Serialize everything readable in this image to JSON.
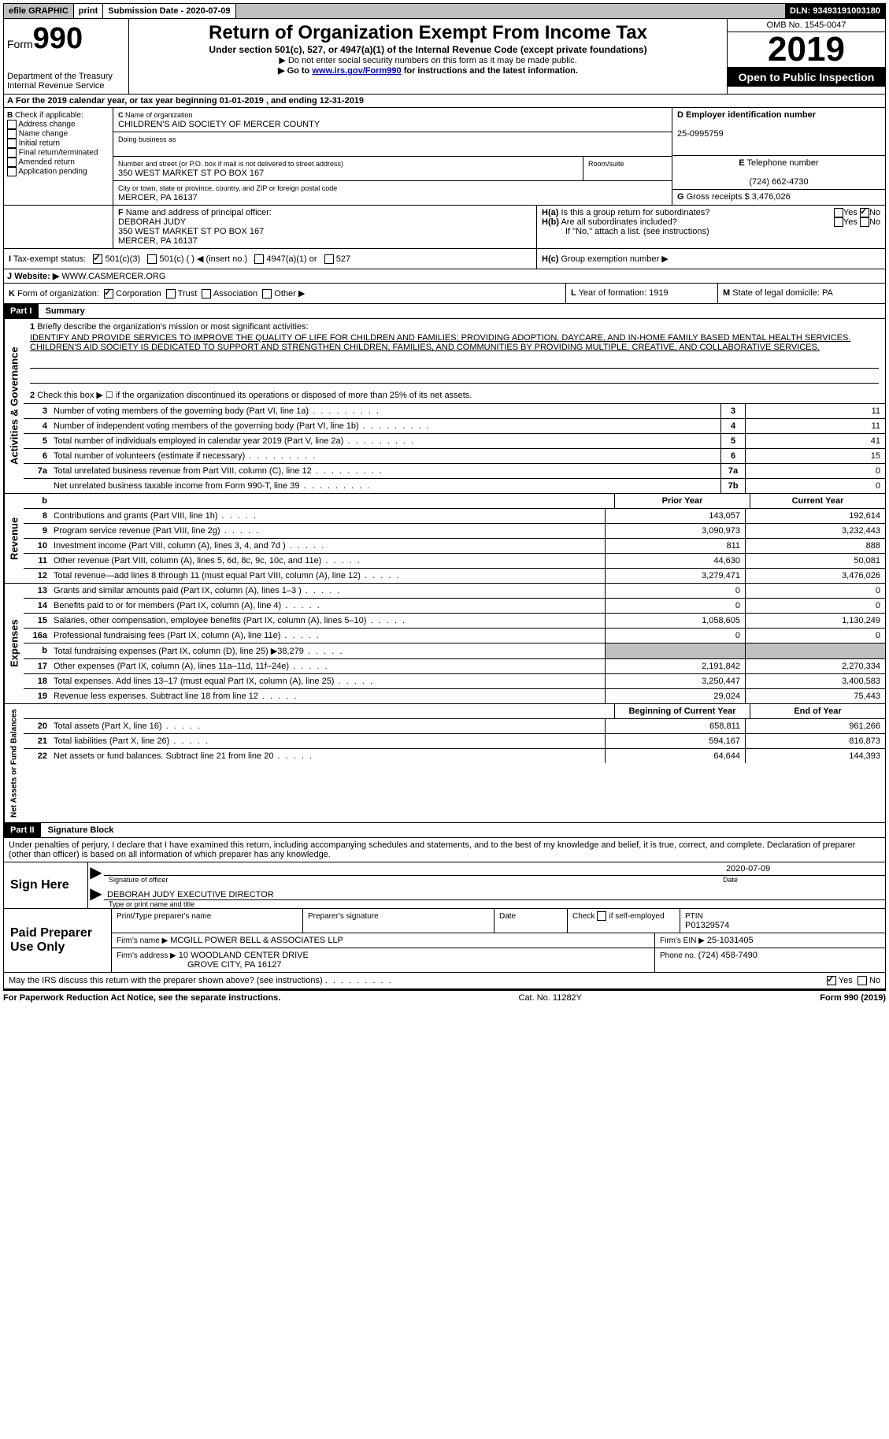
{
  "top": {
    "efile": "efile GRAPHIC",
    "print": "print",
    "submission": "Submission Date - 2020-07-09",
    "dln": "DLN: 93493191003180"
  },
  "header": {
    "form": "Form",
    "num": "990",
    "dept": "Department of the Treasury\nInternal Revenue Service",
    "title": "Return of Organization Exempt From Income Tax",
    "subtitle": "Under section 501(c), 527, or 4947(a)(1) of the Internal Revenue Code (except private foundations)",
    "note1": "Do not enter social security numbers on this form as it may be made public.",
    "note2_pre": "Go to ",
    "note2_link": "www.irs.gov/Form990",
    "note2_post": " for instructions and the latest information.",
    "omb": "OMB No. 1545-0047",
    "year": "2019",
    "inspection": "Open to Public Inspection"
  },
  "rowA": "For the 2019 calendar year, or tax year beginning 01-01-2019  , and ending 12-31-2019",
  "b": {
    "label": "Check if applicable:",
    "opts": [
      "Address change",
      "Name change",
      "Initial return",
      "Final return/terminated",
      "Amended return",
      "Application pending"
    ]
  },
  "c": {
    "name_label": "Name of organization",
    "name": "CHILDREN'S AID SOCIETY OF MERCER COUNTY",
    "dba_label": "Doing business as",
    "addr_label": "Number and street (or P.O. box if mail is not delivered to street address)",
    "room_label": "Room/suite",
    "addr": "350 WEST MARKET ST PO BOX 167",
    "city_label": "City or town, state or province, country, and ZIP or foreign postal code",
    "city": "MERCER, PA  16137"
  },
  "d": {
    "label": "Employer identification number",
    "val": "25-0995759"
  },
  "e": {
    "label": "Telephone number",
    "val": "(724) 662-4730"
  },
  "g": {
    "label": "Gross receipts $",
    "val": "3,476,026"
  },
  "f": {
    "label": "Name and address of principal officer:",
    "name": "DEBORAH JUDY",
    "addr": "350 WEST MARKET ST PO BOX 167",
    "city": "MERCER, PA  16137"
  },
  "h": {
    "a": "Is this a group return for subordinates?",
    "b": "Are all subordinates included?",
    "b_note": "If \"No,\" attach a list. (see instructions)",
    "c": "Group exemption number ▶",
    "yes": "Yes",
    "no": "No"
  },
  "i": {
    "label": "Tax-exempt status:",
    "opts": [
      "501(c)(3)",
      "501(c) (  ) ◀ (insert no.)",
      "4947(a)(1) or",
      "527"
    ]
  },
  "j": {
    "label": "Website: ▶",
    "val": "WWW.CASMERCER.ORG"
  },
  "k": {
    "label": "Form of organization:",
    "opts": [
      "Corporation",
      "Trust",
      "Association",
      "Other ▶"
    ]
  },
  "l": {
    "label": "Year of formation:",
    "val": "1919"
  },
  "m": {
    "label": "State of legal domicile:",
    "val": "PA"
  },
  "part1": {
    "header": "Part I",
    "title": "Summary",
    "q1": "Briefly describe the organization's mission or most significant activities:",
    "mission": "IDENTIFY AND PROVIDE SERVICES TO IMPROVE THE QUALITY OF LIFE FOR CHILDREN AND FAMILIES; PROVIDING ADOPTION, DAYCARE, AND IN-HOME FAMILY BASED MENTAL HEALTH SERVICES. CHILDREN'S AID SOCIETY IS DEDICATED TO SUPPORT AND STRENGTHEN CHILDREN, FAMILIES, AND COMMUNITIES BY PROVIDING MULTIPLE, CREATIVE, AND COLLABORATIVE SERVICES.",
    "q2": "Check this box ▶ ☐  if the organization discontinued its operations or disposed of more than 25% of its net assets."
  },
  "govLines": [
    {
      "n": "3",
      "d": "Number of voting members of the governing body (Part VI, line 1a)",
      "b": "3",
      "v": "11"
    },
    {
      "n": "4",
      "d": "Number of independent voting members of the governing body (Part VI, line 1b)",
      "b": "4",
      "v": "11"
    },
    {
      "n": "5",
      "d": "Total number of individuals employed in calendar year 2019 (Part V, line 2a)",
      "b": "5",
      "v": "41"
    },
    {
      "n": "6",
      "d": "Total number of volunteers (estimate if necessary)",
      "b": "6",
      "v": "15"
    },
    {
      "n": "7a",
      "d": "Total unrelated business revenue from Part VIII, column (C), line 12",
      "b": "7a",
      "v": "0"
    },
    {
      "n": "",
      "d": "Net unrelated business taxable income from Form 990-T, line 39",
      "b": "7b",
      "v": "0"
    }
  ],
  "colHeaders": {
    "prior": "Prior Year",
    "current": "Current Year",
    "boy": "Beginning of Current Year",
    "eoy": "End of Year"
  },
  "revLines": [
    {
      "n": "8",
      "d": "Contributions and grants (Part VIII, line 1h)",
      "p": "143,057",
      "c": "192,614"
    },
    {
      "n": "9",
      "d": "Program service revenue (Part VIII, line 2g)",
      "p": "3,090,973",
      "c": "3,232,443"
    },
    {
      "n": "10",
      "d": "Investment income (Part VIII, column (A), lines 3, 4, and 7d )",
      "p": "811",
      "c": "888"
    },
    {
      "n": "11",
      "d": "Other revenue (Part VIII, column (A), lines 5, 6d, 8c, 9c, 10c, and 11e)",
      "p": "44,630",
      "c": "50,081"
    },
    {
      "n": "12",
      "d": "Total revenue—add lines 8 through 11 (must equal Part VIII, column (A), line 12)",
      "p": "3,279,471",
      "c": "3,476,026"
    }
  ],
  "expLines": [
    {
      "n": "13",
      "d": "Grants and similar amounts paid (Part IX, column (A), lines 1–3 )",
      "p": "0",
      "c": "0"
    },
    {
      "n": "14",
      "d": "Benefits paid to or for members (Part IX, column (A), line 4)",
      "p": "0",
      "c": "0"
    },
    {
      "n": "15",
      "d": "Salaries, other compensation, employee benefits (Part IX, column (A), lines 5–10)",
      "p": "1,058,605",
      "c": "1,130,249"
    },
    {
      "n": "16a",
      "d": "Professional fundraising fees (Part IX, column (A), line 11e)",
      "p": "0",
      "c": "0"
    },
    {
      "n": "b",
      "d": "Total fundraising expenses (Part IX, column (D), line 25) ▶38,279",
      "p": "shaded",
      "c": "shaded"
    },
    {
      "n": "17",
      "d": "Other expenses (Part IX, column (A), lines 11a–11d, 11f–24e)",
      "p": "2,191,842",
      "c": "2,270,334"
    },
    {
      "n": "18",
      "d": "Total expenses. Add lines 13–17 (must equal Part IX, column (A), line 25)",
      "p": "3,250,447",
      "c": "3,400,583"
    },
    {
      "n": "19",
      "d": "Revenue less expenses. Subtract line 18 from line 12",
      "p": "29,024",
      "c": "75,443"
    }
  ],
  "balLines": [
    {
      "n": "20",
      "d": "Total assets (Part X, line 16)",
      "p": "658,811",
      "c": "961,266"
    },
    {
      "n": "21",
      "d": "Total liabilities (Part X, line 26)",
      "p": "594,167",
      "c": "816,873"
    },
    {
      "n": "22",
      "d": "Net assets or fund balances. Subtract line 21 from line 20",
      "p": "64,644",
      "c": "144,393"
    }
  ],
  "vert": {
    "gov": "Activities & Governance",
    "rev": "Revenue",
    "exp": "Expenses",
    "bal": "Net Assets or Fund Balances"
  },
  "part2": {
    "header": "Part II",
    "title": "Signature Block",
    "perjury": "Under penalties of perjury, I declare that I have examined this return, including accompanying schedules and statements, and to the best of my knowledge and belief, it is true, correct, and complete. Declaration of preparer (other than officer) is based on all information of which preparer has any knowledge."
  },
  "sign": {
    "here": "Sign Here",
    "sig_label": "Signature of officer",
    "date_label": "Date",
    "date": "2020-07-09",
    "name": "DEBORAH JUDY EXECUTIVE DIRECTOR",
    "name_label": "Type or print name and title"
  },
  "prep": {
    "label": "Paid Preparer Use Only",
    "h1": "Print/Type preparer's name",
    "h2": "Preparer's signature",
    "h3": "Date",
    "h4_pre": "Check",
    "h4_post": "if self-employed",
    "ptin_label": "PTIN",
    "ptin": "P01329574",
    "firm_label": "Firm's name  ▶",
    "firm": "MCGILL POWER BELL & ASSOCIATES LLP",
    "ein_label": "Firm's EIN ▶",
    "ein": "25-1031405",
    "addr_label": "Firm's address ▶",
    "addr1": "10 WOODLAND CENTER DRIVE",
    "addr2": "GROVE CITY, PA  16127",
    "phone_label": "Phone no.",
    "phone": "(724) 458-7490"
  },
  "discuss": "May the IRS discuss this return with the preparer shown above? (see instructions)",
  "footer": {
    "left": "For Paperwork Reduction Act Notice, see the separate instructions.",
    "mid": "Cat. No. 11282Y",
    "right": "Form 990 (2019)"
  }
}
